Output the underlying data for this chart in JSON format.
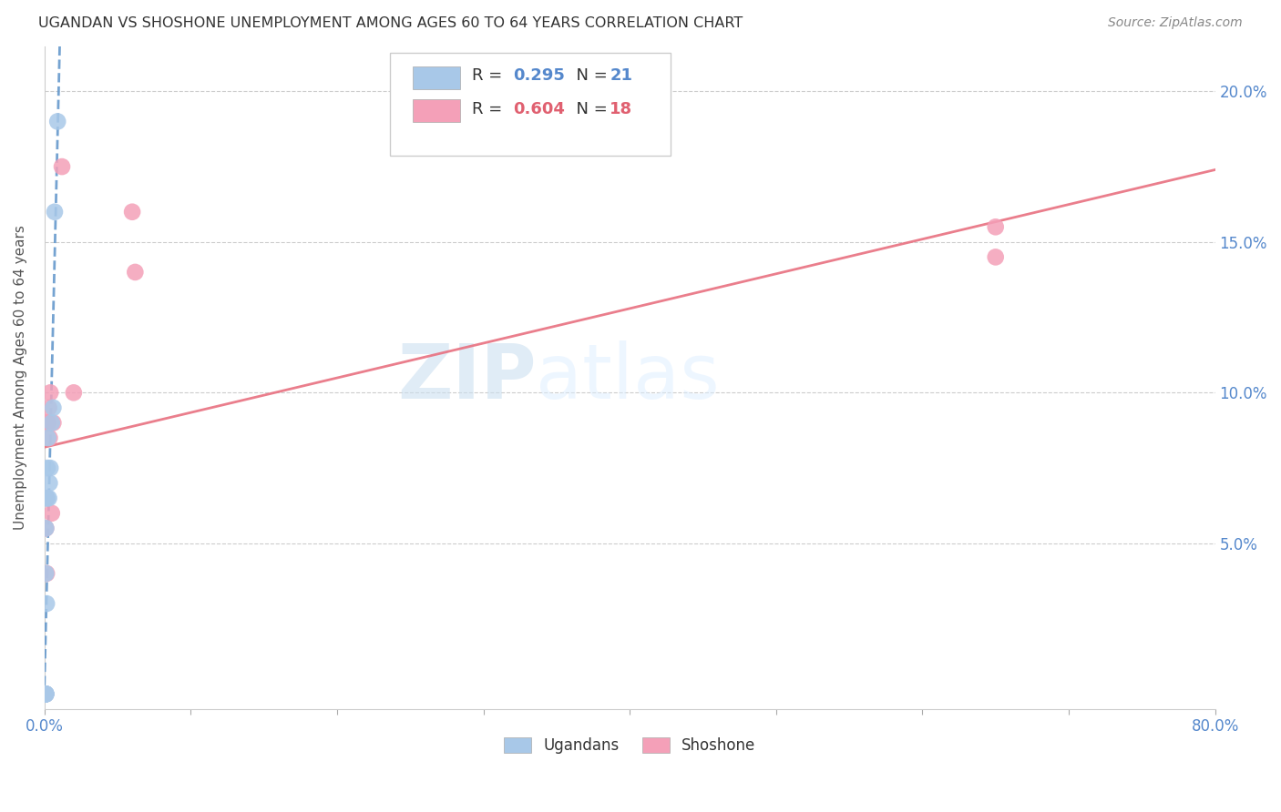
{
  "title": "UGANDAN VS SHOSHONE UNEMPLOYMENT AMONG AGES 60 TO 64 YEARS CORRELATION CHART",
  "source": "Source: ZipAtlas.com",
  "ylabel": "Unemployment Among Ages 60 to 64 years",
  "xlim": [
    0,
    0.8
  ],
  "ylim": [
    -0.005,
    0.215
  ],
  "yticks": [
    0.0,
    0.05,
    0.1,
    0.15,
    0.2
  ],
  "ugandan_R": 0.295,
  "ugandan_N": 21,
  "shoshone_R": 0.604,
  "shoshone_N": 18,
  "ugandan_color": "#a8c8e8",
  "shoshone_color": "#f4a0b8",
  "ugandan_line_color": "#6699cc",
  "shoshone_line_color": "#e8708080",
  "ugandan_x": [
    0.0005,
    0.0005,
    0.0008,
    0.0008,
    0.001,
    0.001,
    0.001,
    0.001,
    0.001,
    0.001,
    0.0015,
    0.002,
    0.002,
    0.0025,
    0.003,
    0.0035,
    0.004,
    0.005,
    0.006,
    0.007,
    0.009
  ],
  "ugandan_y": [
    0.0,
    0.0,
    0.0,
    0.0,
    0.0,
    0.0,
    0.0,
    0.04,
    0.055,
    0.065,
    0.03,
    0.065,
    0.075,
    0.085,
    0.065,
    0.07,
    0.075,
    0.09,
    0.095,
    0.16,
    0.19
  ],
  "shoshone_x": [
    0.0005,
    0.0008,
    0.001,
    0.0012,
    0.0015,
    0.002,
    0.0025,
    0.003,
    0.0035,
    0.004,
    0.005,
    0.006,
    0.012,
    0.02,
    0.06,
    0.062,
    0.65,
    0.65
  ],
  "shoshone_y": [
    0.0,
    0.0,
    0.055,
    0.065,
    0.04,
    0.09,
    0.09,
    0.095,
    0.085,
    0.1,
    0.06,
    0.09,
    0.175,
    0.1,
    0.16,
    0.14,
    0.155,
    0.145
  ],
  "ugandan_trend_x": [
    0.0,
    0.02
  ],
  "ugandan_trend_y": [
    0.068,
    0.2
  ],
  "shoshone_trend_x": [
    0.0,
    0.8
  ],
  "shoshone_trend_y": [
    0.068,
    0.185
  ]
}
